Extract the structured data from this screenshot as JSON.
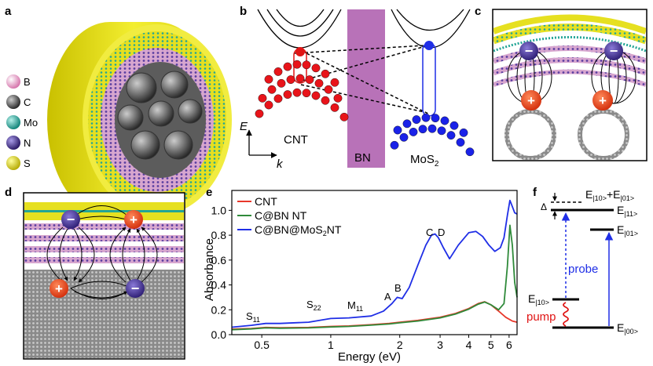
{
  "panels": {
    "a": {
      "label": "a",
      "legend": [
        {
          "symbol": "B",
          "color": "#e7a3c8"
        },
        {
          "symbol": "C",
          "color": "#4a4a4a"
        },
        {
          "symbol": "Mo",
          "color": "#19a99b"
        },
        {
          "symbol": "N",
          "color": "#3d2a8c"
        },
        {
          "symbol": "S",
          "color": "#e0d820"
        }
      ]
    },
    "b": {
      "label": "b",
      "energy_axis": "E",
      "momentum_axis": "k",
      "cnt_label": "CNT",
      "bn_label": "BN",
      "mos2_label": "MoS",
      "mos2_sub": "2"
    },
    "c": {
      "label": "c",
      "hole_sign": "+",
      "electron_sign": "−"
    },
    "d": {
      "label": "d",
      "hole_sign": "+",
      "electron_sign": "−"
    },
    "e": {
      "label": "e",
      "legend": [
        "CNT",
        "C@BN NT",
        "C@BN@MoS",
        "NT"
      ],
      "legend_sub": "2",
      "peaks": {
        "s11": "S",
        "s11_sub": "11",
        "s22": "S",
        "s22_sub": "22",
        "m11": "M",
        "m11_sub": "11",
        "a": "A",
        "b": "B",
        "c": "C",
        "d": "D"
      }
    },
    "f": {
      "label": "f",
      "delta": "Δ",
      "probe": "probe",
      "pump": "pump",
      "levels": {
        "e": "E",
        "s11": "|11>",
        "s01": "|01>",
        "s10": "|10>",
        "s00": "|00>",
        "sum_a": "|10>",
        "plus": "+E",
        "sum_b": "|01>"
      }
    }
  },
  "chart_data": {
    "type": "line",
    "title": "",
    "xlabel": "Energy (eV)",
    "ylabel": "Absorbance",
    "xscale": "log",
    "xlim": [
      0.37,
      6.5
    ],
    "ylim": [
      0,
      1.16
    ],
    "xticks": [
      "0.5",
      "1",
      "2",
      "3",
      "4",
      "5",
      "6"
    ],
    "xtick_values": [
      0.5,
      1,
      2,
      3,
      4,
      5,
      6
    ],
    "yticks": [
      "0.0",
      "0.2",
      "0.4",
      "0.6",
      "0.8",
      "1.0"
    ],
    "ytick_values": [
      0,
      0.2,
      0.4,
      0.6,
      0.8,
      1.0
    ],
    "series": [
      {
        "name": "CNT",
        "color": "#e8372a",
        "x": [
          0.37,
          0.45,
          0.52,
          0.6,
          0.8,
          1.0,
          1.2,
          1.5,
          1.8,
          2.0,
          2.4,
          3.0,
          3.5,
          4.0,
          4.4,
          4.7,
          5.0,
          5.4,
          5.8,
          6.2,
          6.5
        ],
        "y": [
          0.045,
          0.05,
          0.058,
          0.056,
          0.058,
          0.066,
          0.07,
          0.08,
          0.09,
          0.1,
          0.115,
          0.14,
          0.17,
          0.21,
          0.25,
          0.265,
          0.24,
          0.19,
          0.14,
          0.11,
          0.1
        ]
      },
      {
        "name": "C@BN NT",
        "color": "#2f8a3a",
        "x": [
          0.37,
          0.45,
          0.52,
          0.6,
          0.8,
          1.0,
          1.2,
          1.5,
          1.8,
          2.0,
          2.4,
          3.0,
          3.5,
          4.0,
          4.4,
          4.7,
          5.0,
          5.4,
          5.7,
          5.9,
          6.05,
          6.2,
          6.35,
          6.5
        ],
        "y": [
          0.04,
          0.046,
          0.054,
          0.052,
          0.054,
          0.062,
          0.066,
          0.076,
          0.086,
          0.095,
          0.11,
          0.135,
          0.165,
          0.205,
          0.245,
          0.262,
          0.24,
          0.2,
          0.25,
          0.55,
          0.88,
          0.72,
          0.42,
          0.3
        ]
      },
      {
        "name": "C@BN@MoS2NT",
        "color": "#1f2ee6",
        "x": [
          0.37,
          0.45,
          0.52,
          0.6,
          0.8,
          1.0,
          1.2,
          1.5,
          1.7,
          1.85,
          1.95,
          2.05,
          2.2,
          2.4,
          2.6,
          2.75,
          2.85,
          2.95,
          3.1,
          3.3,
          3.6,
          4.0,
          4.3,
          4.6,
          4.9,
          5.2,
          5.5,
          5.7,
          5.9,
          6.05,
          6.2,
          6.35,
          6.5
        ],
        "y": [
          0.06,
          0.075,
          0.09,
          0.09,
          0.1,
          0.13,
          0.135,
          0.15,
          0.19,
          0.25,
          0.3,
          0.29,
          0.38,
          0.56,
          0.72,
          0.8,
          0.81,
          0.78,
          0.7,
          0.61,
          0.72,
          0.82,
          0.83,
          0.79,
          0.72,
          0.67,
          0.7,
          0.78,
          0.96,
          1.08,
          1.03,
          0.98,
          0.97
        ]
      }
    ]
  }
}
